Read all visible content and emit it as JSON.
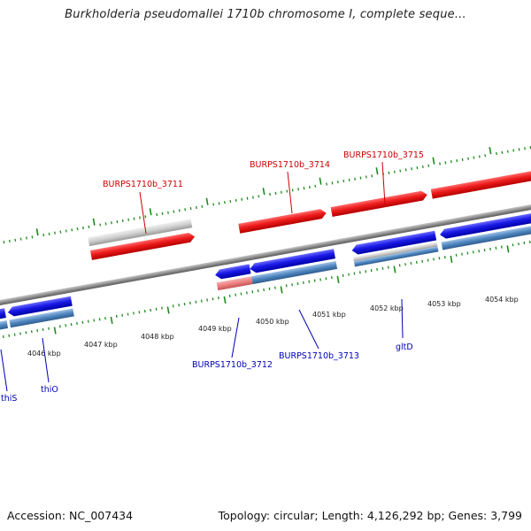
{
  "title": "Burkholderia pseudomallei 1710b chromosome I, complete seque...",
  "footer": {
    "accession": "Accession: NC_007434",
    "summary": "Topology: circular; Length: 4,126,292 bp; Genes: 3,799"
  },
  "colors": {
    "forward_gene": "#e81414",
    "reverse_gene": "#1515e0",
    "forward_label": "#cc0000",
    "reverse_label": "#0000bb",
    "pseudo_gene": "#c8c8c8",
    "cds_track": "#4f86bf",
    "partial_cds": "#ef8a8a",
    "backbone": "#8a8a8a",
    "tick": "#1e8a1e"
  },
  "scale_ticks": [
    "4046 kbp",
    "4047 kbp",
    "4048 kbp",
    "4049 kbp",
    "4050 kbp",
    "4051 kbp",
    "4052 kbp",
    "4053 kbp",
    "4054 kbp"
  ],
  "forward_labels": [
    "BURPS1710b_3711",
    "BURPS1710b_3714",
    "BURPS1710b_3715"
  ],
  "reverse_labels": [
    "thiS",
    "thiO",
    "BURPS1710b_3712",
    "BURPS1710b_3713",
    "gltD"
  ]
}
